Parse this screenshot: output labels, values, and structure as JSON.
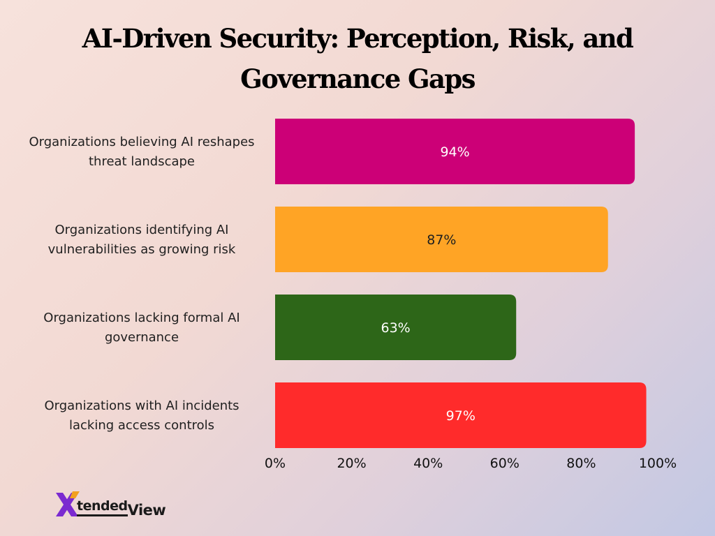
{
  "chart_data": {
    "type": "bar",
    "orientation": "horizontal",
    "title_lines": [
      "AI-Driven Security: Perception, Risk, and",
      "Governance Gaps"
    ],
    "categories": [
      [
        "Organizations believing AI reshapes",
        "threat landscape"
      ],
      [
        "Organizations identifying AI",
        "vulnerabilities as growing risk"
      ],
      [
        "Organizations lacking formal AI",
        "governance"
      ],
      [
        "Organizations with AI incidents",
        "lacking access controls"
      ]
    ],
    "values": [
      94,
      87,
      63,
      97
    ],
    "value_labels": [
      "94%",
      "87%",
      "63%",
      "97%"
    ],
    "bar_colors": [
      "#cc0077",
      "#ffa425",
      "#2d6618",
      "#ff2b2b"
    ],
    "value_label_colors": [
      "#ffffff",
      "#1f1f1f",
      "#ffffff",
      "#ffffff"
    ],
    "xlim": [
      0,
      100
    ],
    "x_ticks": [
      "0%",
      "20%",
      "40%",
      "60%",
      "80%",
      "100%"
    ],
    "grid": false
  },
  "logo": {
    "mark_letter": "X",
    "word1": "tended",
    "word2": "View",
    "mark_colors": [
      "#7b2ad0",
      "#f2a020"
    ]
  }
}
